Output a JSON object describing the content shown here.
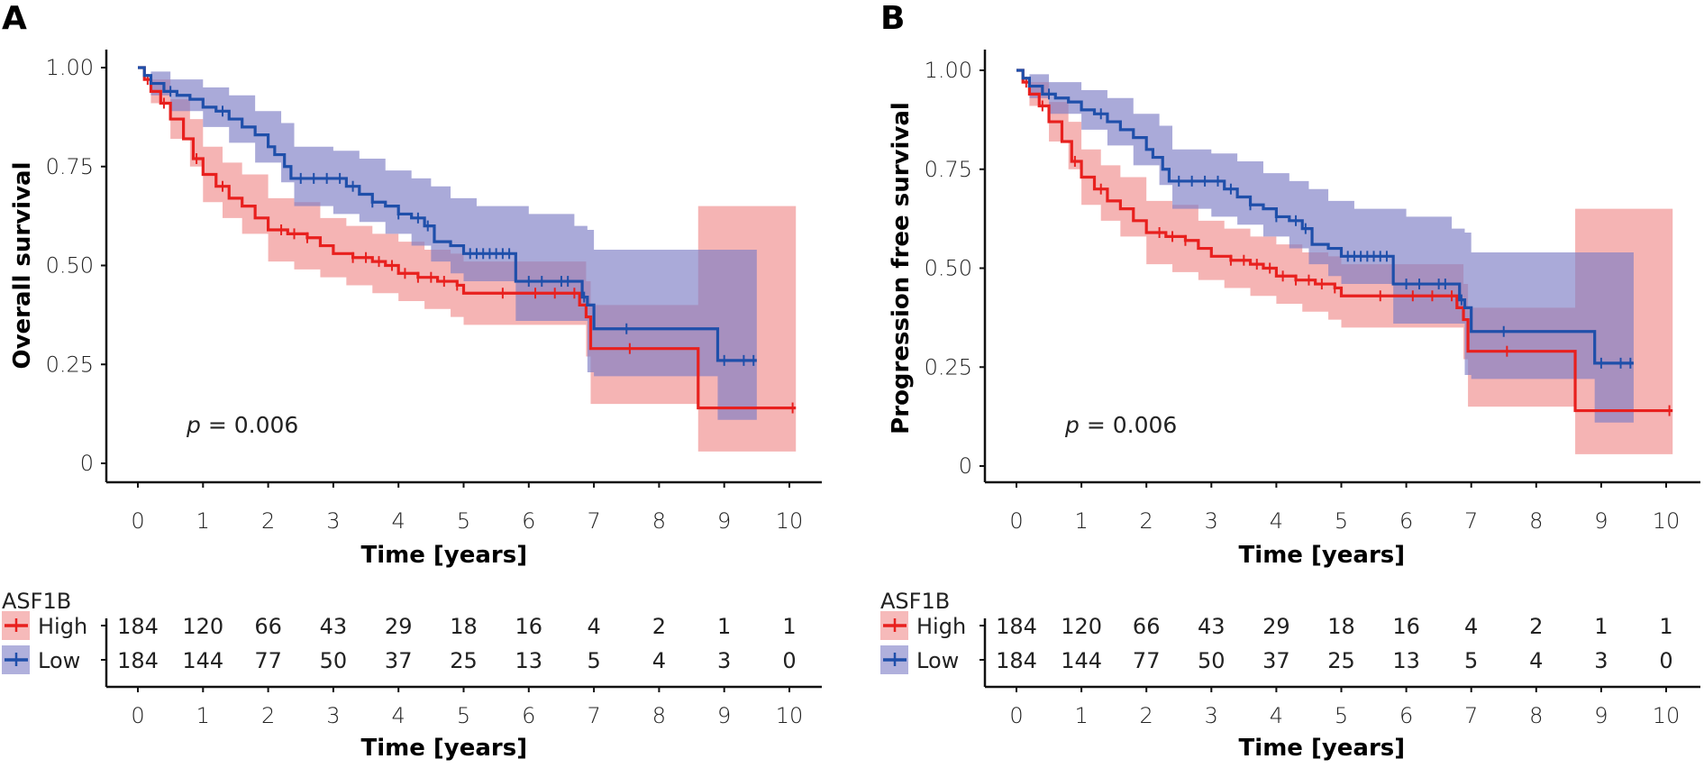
{
  "colors": {
    "high_line": "#E8201E",
    "high_band": "#F08C8C",
    "low_line": "#1F4FAA",
    "low_band": "#7C7CC4",
    "axis": "#111111"
  },
  "chart_data": [
    {
      "panel": "A",
      "type": "line",
      "subtype": "kaplan-meier",
      "title": "",
      "xlabel": "Time [years]",
      "ylabel": "Overall survival",
      "xlim": [
        0,
        10
      ],
      "ylim": [
        0,
        1
      ],
      "x_ticks": [
        "0",
        "1",
        "2",
        "3",
        "4",
        "5",
        "6",
        "7",
        "8",
        "9",
        "10"
      ],
      "y_ticks": [
        "0",
        "0.25",
        "0.50",
        "0.75",
        "1.00"
      ],
      "grid": false,
      "annotation": {
        "p_symbol": "p",
        "p_text": " = 0.006"
      },
      "legend": {
        "title": "ASF1B",
        "entries": [
          "High",
          "Low"
        ],
        "placement": "bottom-left"
      },
      "series": [
        {
          "name": "High",
          "color_key": "high",
          "steps": [
            [
              0,
              1.0
            ],
            [
              0.1,
              0.97
            ],
            [
              0.2,
              0.94
            ],
            [
              0.35,
              0.91
            ],
            [
              0.5,
              0.87
            ],
            [
              0.7,
              0.82
            ],
            [
              0.85,
              0.77
            ],
            [
              1.0,
              0.73
            ],
            [
              1.2,
              0.7
            ],
            [
              1.4,
              0.67
            ],
            [
              1.6,
              0.65
            ],
            [
              1.8,
              0.62
            ],
            [
              2.0,
              0.59
            ],
            [
              2.3,
              0.58
            ],
            [
              2.6,
              0.57
            ],
            [
              2.8,
              0.55
            ],
            [
              3.0,
              0.53
            ],
            [
              3.3,
              0.52
            ],
            [
              3.6,
              0.51
            ],
            [
              3.8,
              0.5
            ],
            [
              4.0,
              0.48
            ],
            [
              4.3,
              0.47
            ],
            [
              4.6,
              0.46
            ],
            [
              4.9,
              0.45
            ],
            [
              5.0,
              0.43
            ],
            [
              6.78,
              0.43
            ],
            [
              6.78,
              0.4
            ],
            [
              6.88,
              0.37
            ],
            [
              6.95,
              0.29
            ],
            [
              8.6,
              0.29
            ],
            [
              8.6,
              0.14
            ],
            [
              10.1,
              0.14
            ]
          ],
          "upper": [
            [
              0,
              1.0
            ],
            [
              0.2,
              0.97
            ],
            [
              0.5,
              0.92
            ],
            [
              0.8,
              0.87
            ],
            [
              1.0,
              0.8
            ],
            [
              1.3,
              0.76
            ],
            [
              1.6,
              0.73
            ],
            [
              2.0,
              0.67
            ],
            [
              2.4,
              0.66
            ],
            [
              2.8,
              0.62
            ],
            [
              3.2,
              0.6
            ],
            [
              3.6,
              0.58
            ],
            [
              4.0,
              0.56
            ],
            [
              4.4,
              0.54
            ],
            [
              4.8,
              0.53
            ],
            [
              5.0,
              0.51
            ],
            [
              6.0,
              0.51
            ],
            [
              6.78,
              0.51
            ],
            [
              6.88,
              0.46
            ],
            [
              6.95,
              0.4
            ],
            [
              8.6,
              0.4
            ],
            [
              8.6,
              0.65
            ],
            [
              10.1,
              0.65
            ]
          ],
          "lower": [
            [
              0,
              1.0
            ],
            [
              0.2,
              0.91
            ],
            [
              0.5,
              0.82
            ],
            [
              0.8,
              0.75
            ],
            [
              1.0,
              0.66
            ],
            [
              1.3,
              0.62
            ],
            [
              1.6,
              0.58
            ],
            [
              2.0,
              0.51
            ],
            [
              2.4,
              0.49
            ],
            [
              2.8,
              0.47
            ],
            [
              3.2,
              0.45
            ],
            [
              3.6,
              0.43
            ],
            [
              4.0,
              0.41
            ],
            [
              4.4,
              0.39
            ],
            [
              4.8,
              0.37
            ],
            [
              5.0,
              0.35
            ],
            [
              6.78,
              0.35
            ],
            [
              6.88,
              0.27
            ],
            [
              6.95,
              0.15
            ],
            [
              8.6,
              0.15
            ],
            [
              8.6,
              0.03
            ],
            [
              10.1,
              0.03
            ]
          ],
          "censor_x": [
            0.15,
            0.4,
            0.9,
            1.3,
            2.2,
            2.4,
            2.6,
            3.3,
            3.5,
            3.7,
            3.9,
            4.1,
            4.3,
            4.5,
            4.7,
            4.9,
            5.6,
            6.1,
            6.4,
            6.7,
            7.55,
            10.05
          ]
        },
        {
          "name": "Low",
          "color_key": "low",
          "steps": [
            [
              0,
              1.0
            ],
            [
              0.1,
              0.98
            ],
            [
              0.2,
              0.96
            ],
            [
              0.4,
              0.94
            ],
            [
              0.6,
              0.93
            ],
            [
              0.8,
              0.92
            ],
            [
              1.0,
              0.9
            ],
            [
              1.2,
              0.89
            ],
            [
              1.4,
              0.87
            ],
            [
              1.6,
              0.85
            ],
            [
              1.8,
              0.83
            ],
            [
              2.0,
              0.8
            ],
            [
              2.1,
              0.78
            ],
            [
              2.25,
              0.75
            ],
            [
              2.35,
              0.72
            ],
            [
              3.0,
              0.72
            ],
            [
              3.2,
              0.7
            ],
            [
              3.4,
              0.68
            ],
            [
              3.6,
              0.66
            ],
            [
              3.8,
              0.65
            ],
            [
              4.0,
              0.63
            ],
            [
              4.2,
              0.62
            ],
            [
              4.4,
              0.6
            ],
            [
              4.55,
              0.56
            ],
            [
              4.8,
              0.55
            ],
            [
              5.0,
              0.53
            ],
            [
              5.8,
              0.53
            ],
            [
              5.8,
              0.46
            ],
            [
              6.75,
              0.46
            ],
            [
              6.82,
              0.42
            ],
            [
              6.9,
              0.4
            ],
            [
              7.0,
              0.34
            ],
            [
              8.9,
              0.34
            ],
            [
              8.9,
              0.26
            ],
            [
              9.5,
              0.26
            ]
          ],
          "upper": [
            [
              0,
              1.0
            ],
            [
              0.2,
              0.99
            ],
            [
              0.5,
              0.97
            ],
            [
              1.0,
              0.95
            ],
            [
              1.4,
              0.93
            ],
            [
              1.8,
              0.89
            ],
            [
              2.2,
              0.86
            ],
            [
              2.4,
              0.8
            ],
            [
              3.0,
              0.79
            ],
            [
              3.4,
              0.77
            ],
            [
              3.8,
              0.74
            ],
            [
              4.2,
              0.72
            ],
            [
              4.5,
              0.7
            ],
            [
              4.8,
              0.67
            ],
            [
              5.2,
              0.65
            ],
            [
              6.0,
              0.63
            ],
            [
              6.7,
              0.6
            ],
            [
              6.9,
              0.59
            ],
            [
              7.0,
              0.54
            ],
            [
              9.0,
              0.54
            ],
            [
              9.2,
              0.54
            ],
            [
              9.5,
              0.54
            ]
          ],
          "lower": [
            [
              0,
              1.0
            ],
            [
              0.2,
              0.93
            ],
            [
              0.5,
              0.89
            ],
            [
              1.0,
              0.85
            ],
            [
              1.4,
              0.81
            ],
            [
              1.8,
              0.76
            ],
            [
              2.2,
              0.71
            ],
            [
              2.4,
              0.65
            ],
            [
              3.0,
              0.63
            ],
            [
              3.4,
              0.61
            ],
            [
              3.8,
              0.58
            ],
            [
              4.2,
              0.55
            ],
            [
              4.5,
              0.51
            ],
            [
              4.8,
              0.48
            ],
            [
              5.0,
              0.46
            ],
            [
              5.8,
              0.45
            ],
            [
              5.8,
              0.36
            ],
            [
              6.75,
              0.36
            ],
            [
              6.9,
              0.23
            ],
            [
              7.0,
              0.22
            ],
            [
              8.9,
              0.22
            ],
            [
              8.9,
              0.11
            ],
            [
              9.5,
              0.11
            ]
          ],
          "censor_x": [
            0.5,
            1.3,
            2.5,
            2.7,
            2.9,
            3.1,
            3.3,
            3.6,
            4.0,
            4.3,
            4.45,
            5.1,
            5.2,
            5.3,
            5.4,
            5.5,
            5.6,
            5.7,
            6.0,
            6.2,
            6.5,
            6.6,
            6.85,
            7.5,
            9.0,
            9.3,
            9.45
          ]
        }
      ],
      "risk_table": {
        "xlabel": "Time [years]",
        "times": [
          0,
          1,
          2,
          3,
          4,
          5,
          6,
          7,
          8,
          9,
          10
        ],
        "rows": [
          {
            "name": "High",
            "values": [
              184,
              120,
              66,
              43,
              29,
              18,
              16,
              4,
              2,
              1,
              1
            ]
          },
          {
            "name": "Low",
            "values": [
              184,
              144,
              77,
              50,
              37,
              25,
              13,
              5,
              4,
              3,
              0
            ]
          }
        ]
      }
    },
    {
      "panel": "B",
      "type": "line",
      "subtype": "kaplan-meier",
      "title": "",
      "xlabel": "Time [years]",
      "ylabel": "Progression free survival",
      "xlim": [
        0,
        10
      ],
      "ylim": [
        0,
        1
      ],
      "x_ticks": [
        "0",
        "1",
        "2",
        "3",
        "4",
        "5",
        "6",
        "7",
        "8",
        "9",
        "10"
      ],
      "y_ticks": [
        "0",
        "0.25",
        "0.50",
        "0.75",
        "1.00"
      ],
      "grid": false,
      "annotation": {
        "p_symbol": "p",
        "p_text": " = 0.006"
      },
      "legend": {
        "title": "ASF1B",
        "entries": [
          "High",
          "Low"
        ],
        "placement": "bottom-left"
      },
      "series": "same-as-A",
      "risk_table": {
        "xlabel": "Time [years]",
        "times": [
          0,
          1,
          2,
          3,
          4,
          5,
          6,
          7,
          8,
          9,
          10
        ],
        "rows": [
          {
            "name": "High",
            "values": [
              184,
              120,
              66,
              43,
              29,
              18,
              16,
              4,
              2,
              1,
              1
            ]
          },
          {
            "name": "Low",
            "values": [
              184,
              144,
              77,
              50,
              37,
              25,
              13,
              5,
              4,
              3,
              0
            ]
          }
        ]
      }
    }
  ]
}
